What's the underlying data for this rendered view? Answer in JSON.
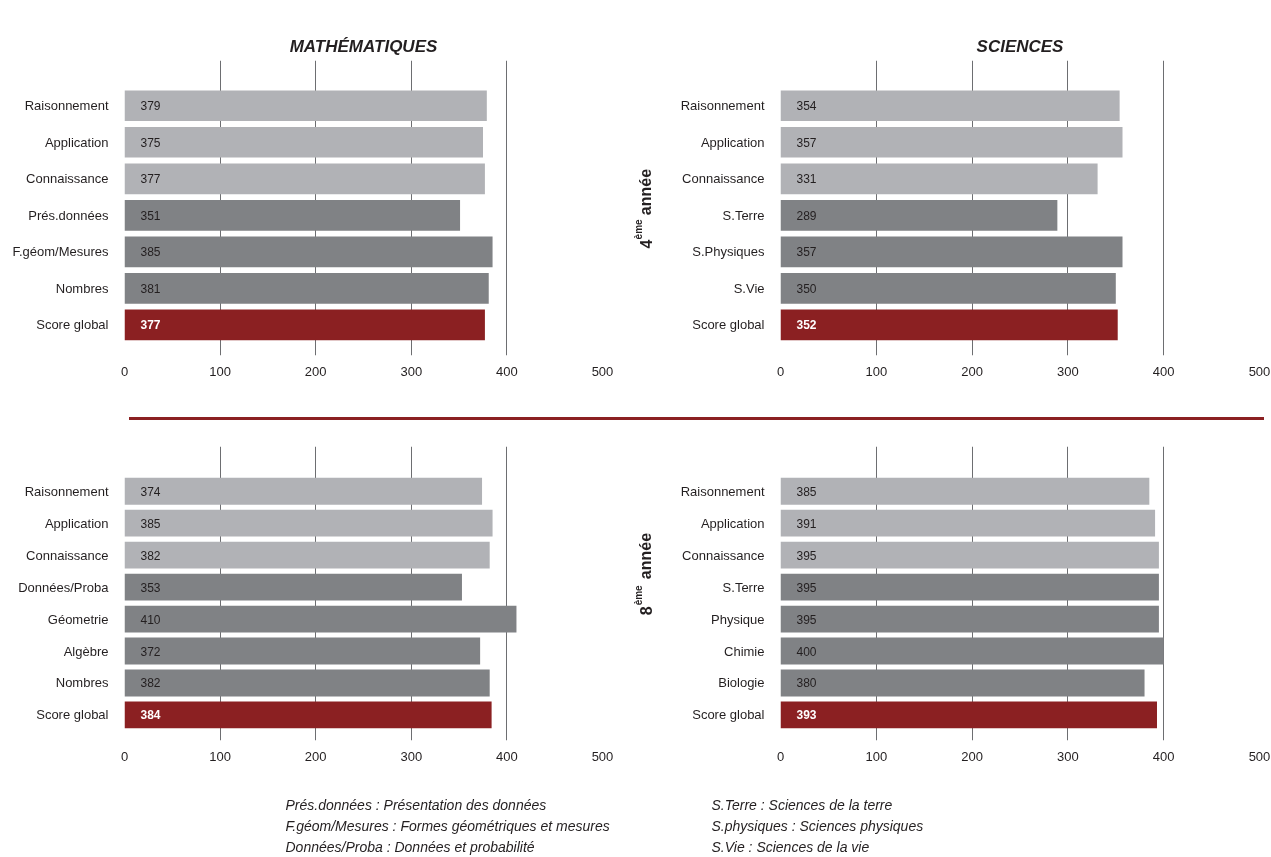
{
  "chart_data": [
    {
      "type": "bar",
      "orientation": "horizontal",
      "title": "MATHÉMATIQUES",
      "categories": [
        "Raisonnement",
        "Application",
        "Connaissance",
        "Prés.données",
        "F.géom/Mesures",
        "Nombres",
        "Score global"
      ],
      "values": [
        379,
        375,
        377,
        351,
        385,
        381,
        377
      ],
      "colors": [
        "#b1b2b6",
        "#b1b2b6",
        "#b1b2b6",
        "#808285",
        "#808285",
        "#808285",
        "#8b2022"
      ],
      "xlim": [
        0,
        500
      ],
      "xticks": [
        0,
        100,
        200,
        300,
        400,
        500
      ],
      "grid": "x",
      "data_labels": true
    },
    {
      "type": "bar",
      "orientation": "horizontal",
      "title": "SCIENCES",
      "ylabel": "4$^{ème}$ année",
      "categories": [
        "Raisonnement",
        "Application",
        "Connaissance",
        "S.Terre",
        "S.Physiques",
        "S.Vie",
        "Score global"
      ],
      "values": [
        354,
        357,
        331,
        289,
        357,
        350,
        352
      ],
      "colors": [
        "#b1b2b6",
        "#b1b2b6",
        "#b1b2b6",
        "#808285",
        "#808285",
        "#808285",
        "#8b2022"
      ],
      "xlim": [
        0,
        500
      ],
      "xticks": [
        0,
        100,
        200,
        300,
        400,
        500
      ],
      "grid": "x",
      "data_labels": true
    },
    {
      "type": "bar",
      "orientation": "horizontal",
      "categories": [
        "Raisonnement",
        "Application",
        "Connaissance",
        "Données/Proba",
        "Géometrie",
        "Algèbre",
        "Nombres",
        "Score global"
      ],
      "values": [
        374,
        385,
        382,
        353,
        410,
        372,
        382,
        384
      ],
      "colors": [
        "#b1b2b6",
        "#b1b2b6",
        "#b1b2b6",
        "#808285",
        "#808285",
        "#808285",
        "#808285",
        "#8b2022"
      ],
      "xlim": [
        0,
        500
      ],
      "xticks": [
        0,
        100,
        200,
        300,
        400,
        500
      ],
      "grid": "x",
      "data_labels": true,
      "annotations": [
        "Prés.données : Présentation des données",
        "F.géom/Mesures : Formes géométriques et mesures",
        "Données/Proba : Données et probabilité"
      ]
    },
    {
      "type": "bar",
      "orientation": "horizontal",
      "ylabel": "8$^{ème}$ année",
      "categories": [
        "Raisonnement",
        "Application",
        "Connaissance",
        "S.Terre",
        "Physique",
        "Chimie",
        "Biologie",
        "Score global"
      ],
      "values": [
        385,
        391,
        395,
        395,
        395,
        400,
        380,
        393
      ],
      "colors": [
        "#b1b2b6",
        "#b1b2b6",
        "#b1b2b6",
        "#808285",
        "#808285",
        "#808285",
        "#808285",
        "#8b2022"
      ],
      "xlim": [
        0,
        500
      ],
      "xticks": [
        0,
        100,
        200,
        300,
        400,
        500
      ],
      "grid": "x",
      "data_labels": true,
      "annotations": [
        "S.Terre : Sciences de la terre",
        "S.physiques : Sciences physiques",
        "S.Vie : Sciences de la vie"
      ]
    }
  ]
}
